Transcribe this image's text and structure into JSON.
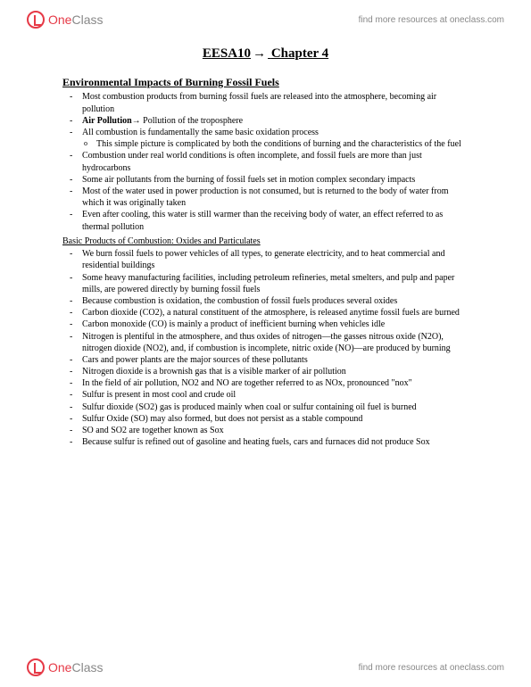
{
  "header": {
    "logo_red": "One",
    "logo_gray": "Class",
    "link_text": "find more resources at oneclass.com"
  },
  "title": {
    "course": "EESA10",
    "arrow": "→",
    "chapter": "Chapter 4"
  },
  "section1": {
    "heading": "Environmental Impacts of Burning Fossil Fuels",
    "items": [
      "Most combustion products from burning fossil fuels are released into the atmosphere, becoming air pollution",
      "",
      "All combustion is fundamentally the same basic oxidation process",
      "",
      "Combustion under real world conditions is often incomplete, and fossil fuels are more than just hydrocarbons",
      "Some air pollutants from the burning of fossil fuels set in motion complex secondary impacts",
      "Most of the water used in power production is not consumed, but is returned to the body of water from which it was originally taken",
      "Even after cooling, this water is still warmer than the receiving body of water, an effect referred to as thermal pollution"
    ],
    "air_pollution_bold": "Air Pollution",
    "air_pollution_arrow": "→",
    "air_pollution_rest": " Pollution of the troposphere",
    "subitem": "This simple picture is complicated by both the conditions of burning and the characteristics of the fuel"
  },
  "section2": {
    "heading": "Basic Products of Combustion: Oxides and Particulates",
    "items": [
      "We burn fossil fuels to power vehicles of all types, to generate electricity, and to heat commercial and residential buildings",
      "Some heavy manufacturing facilities, including petroleum refineries, metal smelters, and pulp and paper mills, are powered directly by burning fossil fuels",
      "Because combustion is oxidation, the combustion of fossil fuels produces several oxides",
      "Carbon dioxide (CO2), a natural constituent of the atmosphere, is released anytime fossil fuels are burned",
      "Carbon monoxide (CO) is mainly a product of inefficient burning when vehicles idle",
      "Nitrogen is plentiful in the atmosphere, and thus oxides of nitrogen—the gasses nitrous oxide (N2O), nitrogen dioxide (NO2), and, if combustion is incomplete, nitric oxide (NO)—are produced by burning",
      "Cars and power plants are the major sources of these pollutants",
      "Nitrogen dioxide is a brownish gas that is a visible marker of air pollution",
      "In the field of air pollution, NO2 and NO are together referred to as NOx, pronounced \"nox\"",
      "Sulfur is present in most cool and crude oil",
      "Sulfur dioxide (SO2) gas is produced mainly when coal or sulfur containing oil fuel is burned",
      "Sulfur Oxide (SO) may also formed, but does not persist as a stable compound",
      "SO and SO2 are together known as Sox",
      "Because sulfur is refined out of gasoline and heating fuels, cars and furnaces did not produce Sox"
    ]
  },
  "footer": {
    "logo_red": "One",
    "logo_gray": "Class",
    "link_text": "find more resources at oneclass.com"
  }
}
